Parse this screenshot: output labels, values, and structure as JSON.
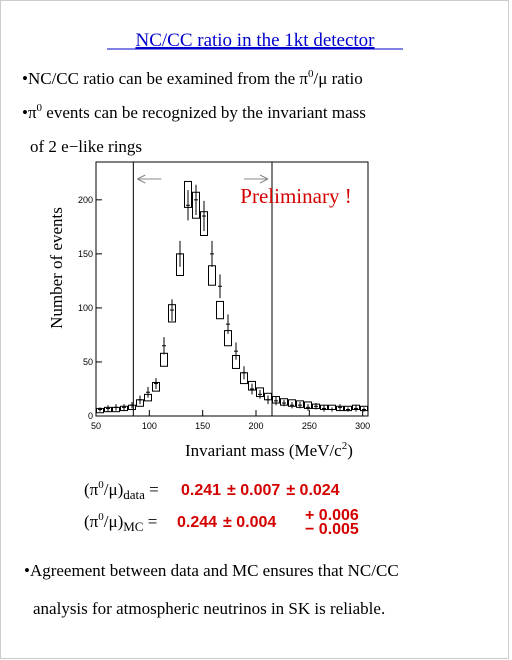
{
  "slide": {
    "title": "NC/CC ratio in the 1kt detector",
    "bullets": [
      [
        "•NC/CC ratio can be examined from the π",
        "0",
        "/μ ratio"
      ],
      [
        "•π",
        "0",
        " events can be recognized by the invariant mass"
      ],
      [
        "of 2 e−like rings"
      ]
    ],
    "results": [
      {
        "symbol": [
          "(π",
          "0",
          "/μ)",
          "data",
          " ="
        ],
        "value": "0.241",
        "stat": "± 0.007",
        "syst": "± 0.024"
      },
      {
        "symbol": [
          "(π",
          "0",
          "/μ)",
          "MC",
          " ="
        ],
        "value": "0.244",
        "stat": "± 0.004",
        "syst_plus": "+ 0.006",
        "syst_minus": "− 0.005"
      }
    ],
    "conclusion": [
      "•Agreement between data and MC ensures that NC/CC",
      "analysis for atmospheric neutrinos in SK is reliable."
    ]
  },
  "chart_data": {
    "type": "histogram",
    "ylabel": "Number of events",
    "xlabel": [
      "Invariant mass (MeV/c",
      "2",
      ")"
    ],
    "annotation": "Preliminary !",
    "bins": [
      50,
      57.5,
      65,
      72.5,
      80,
      87.5,
      95,
      102.5,
      110,
      117.5,
      125,
      132.5,
      140,
      147.5,
      155,
      162.5,
      170,
      177.5,
      185,
      192.5,
      200,
      207.5,
      215,
      222.5,
      230,
      237.5,
      245,
      252.5,
      260,
      267.5,
      275,
      282.5,
      290,
      297.5,
      305
    ],
    "series": [
      {
        "name": "MC",
        "color": "#000000",
        "values": [
          5,
          6,
          6,
          7,
          8,
          12,
          17,
          27,
          52,
          95,
          140,
          205,
          195,
          178,
          130,
          98,
          72,
          50,
          35,
          28,
          22,
          18,
          15,
          13,
          12,
          11,
          10,
          9,
          8,
          8,
          7,
          7,
          8,
          7
        ],
        "errors": [
          2,
          2,
          2,
          2,
          2,
          3,
          3,
          4,
          6,
          8,
          10,
          12,
          12,
          11,
          9,
          8,
          7,
          6,
          5,
          4,
          4,
          3,
          3,
          3,
          3,
          3,
          3,
          2,
          2,
          2,
          2,
          2,
          2,
          2
        ]
      },
      {
        "name": "data",
        "color": "#000000",
        "values": [
          6,
          7,
          8,
          8,
          10,
          15,
          22,
          30,
          65,
          98,
          150,
          195,
          200,
          185,
          150,
          120,
          85,
          60,
          40,
          25,
          20,
          15,
          14,
          12,
          10,
          10,
          8,
          9,
          7,
          6,
          8,
          6,
          7,
          6
        ],
        "errors": [
          2,
          3,
          3,
          3,
          3,
          4,
          5,
          5,
          8,
          10,
          12,
          14,
          14,
          14,
          12,
          11,
          9,
          8,
          6,
          5,
          4,
          4,
          4,
          3,
          3,
          3,
          3,
          3,
          3,
          2,
          3,
          2,
          3,
          2
        ]
      }
    ],
    "cuts": [
      85,
      215
    ],
    "xlim": [
      50,
      305
    ],
    "xticks": [
      50,
      100,
      150,
      200,
      250,
      300
    ],
    "ylim": [
      0,
      235
    ],
    "yticks": [
      0,
      50,
      100,
      150,
      200
    ]
  }
}
